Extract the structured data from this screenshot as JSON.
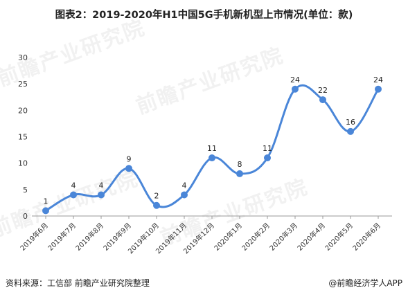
{
  "title": "图表2：2019-2020年H1中国5G手机新机型上市情况(单位：款)",
  "footer": {
    "source": "资料来源：工信部 前瞻产业研究院整理",
    "brand": "@前瞻经济学人APP"
  },
  "watermark": "前瞻产业研究院",
  "colors": {
    "line": "#4A86D8",
    "marker": "#4A86D8",
    "axis": "#999999"
  },
  "chart_data": {
    "type": "line",
    "title": "图表2：2019-2020年H1中国5G手机新机型上市情况(单位：款)",
    "xlabel": "",
    "ylabel": "",
    "categories": [
      "2019年6月",
      "2019年7月",
      "2019年8月",
      "2019年9月",
      "2019年10月",
      "2019年11月",
      "2019年12月",
      "2020年1月",
      "2020年2月",
      "2020年3月",
      "2020年4月",
      "2020年5月",
      "2020年6月"
    ],
    "values": [
      1,
      4,
      4,
      9,
      2,
      4,
      11,
      8,
      11,
      24,
      22,
      16,
      24
    ],
    "ylim": [
      0,
      30
    ],
    "yticks": [
      0,
      5,
      10,
      15,
      20,
      25,
      30
    ],
    "grid": false,
    "smooth": true,
    "data_labels": true
  }
}
